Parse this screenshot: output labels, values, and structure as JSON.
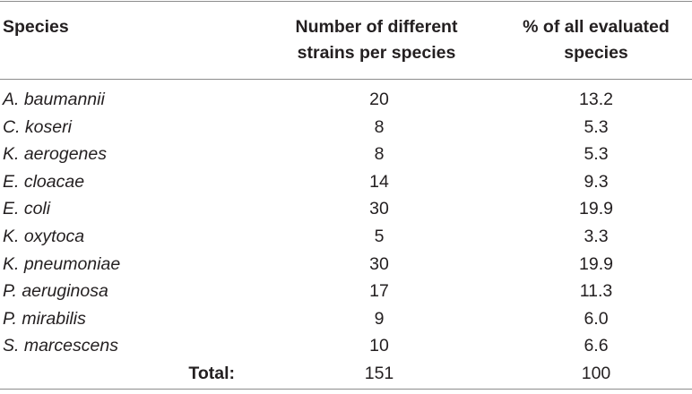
{
  "table": {
    "headers": {
      "species": "Species",
      "strains_line1": "Number of different",
      "strains_line2": "strains per species",
      "percent_line1": "% of all evaluated",
      "percent_line2": "species"
    },
    "rows": [
      {
        "species": "A. baumannii",
        "strains": "20",
        "percent": "13.2"
      },
      {
        "species": "C. koseri",
        "strains": "8",
        "percent": "5.3"
      },
      {
        "species": "K. aerogenes",
        "strains": "8",
        "percent": "5.3"
      },
      {
        "species": "E. cloacae",
        "strains": "14",
        "percent": "9.3"
      },
      {
        "species": "E. coli",
        "strains": "30",
        "percent": "19.9"
      },
      {
        "species": "K. oxytoca",
        "strains": "5",
        "percent": "3.3"
      },
      {
        "species": "K. pneumoniae",
        "strains": "30",
        "percent": "19.9"
      },
      {
        "species": "P. aeruginosa",
        "strains": "17",
        "percent": "11.3"
      },
      {
        "species": "P. mirabilis",
        "strains": "9",
        "percent": "6.0"
      },
      {
        "species": "S. marcescens",
        "strains": "10",
        "percent": "6.6"
      }
    ],
    "total": {
      "label": "Total:",
      "strains": "151",
      "percent": "100"
    }
  }
}
